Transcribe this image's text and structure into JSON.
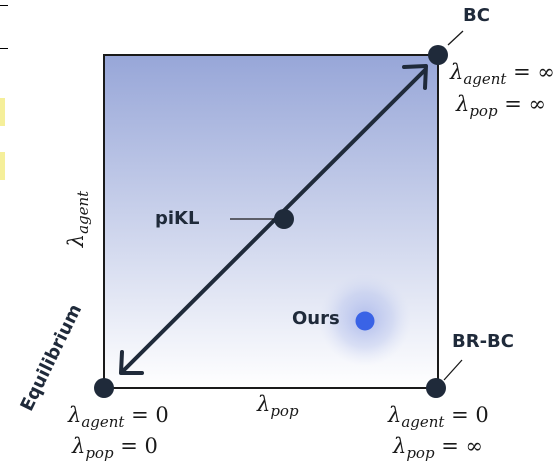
{
  "colors": {
    "gradient_top": "#97a6d8",
    "gradient_bottom": "#ffffff",
    "square_border": "#1a1a1a",
    "point_fill": "#1f2a3a",
    "ours_point": "#3a63e6",
    "ours_glow": "#7f93e3",
    "arrow": "#1f2a3a"
  },
  "labels": {
    "bc": "BC",
    "pikl": "piKL",
    "ours": "Ours",
    "brbc": "BR-BC",
    "equilibrium": "Equilibrium"
  },
  "axes": {
    "x_symbol": "λ",
    "x_sub": "pop",
    "y_symbol": "λ",
    "y_sub": "agent"
  },
  "corners": {
    "bc": {
      "agent_sym": "λ",
      "agent_sub": "agent",
      "agent_val": "= ∞",
      "pop_sym": "λ",
      "pop_sub": "pop",
      "pop_val": "= ∞"
    },
    "equilibrium": {
      "agent_sym": "λ",
      "agent_sub": "agent",
      "agent_val": "= 0",
      "pop_sym": "λ",
      "pop_sub": "pop",
      "pop_val": "= 0"
    },
    "brbc": {
      "agent_sym": "λ",
      "agent_sub": "agent",
      "agent_val": "= 0",
      "pop_sym": "λ",
      "pop_sub": "pop",
      "pop_val": "= ∞"
    }
  },
  "icons": [
    "double-headed-arrow",
    "point-marker"
  ]
}
